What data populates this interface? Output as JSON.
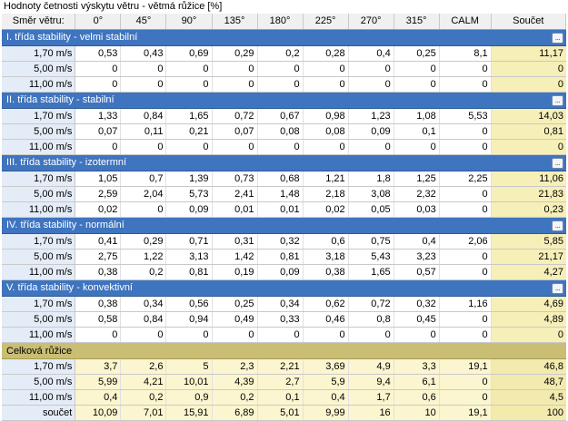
{
  "window_title": "Hodnoty četnosti výskytu větru - větmá růžice  [%]",
  "headers": [
    "Směr větru:",
    "0°",
    "45°",
    "90°",
    "135°",
    "180°",
    "225°",
    "270°",
    "315°",
    "CALM",
    "Součet"
  ],
  "expand_button_label": "...",
  "sections": [
    {
      "title": "I. třída stability - velmi stabilní",
      "rows": [
        {
          "label": "1,70 m/s",
          "cells": [
            "0,53",
            "0,43",
            "0,69",
            "0,29",
            "0,2",
            "0,28",
            "0,4",
            "0,25",
            "8,1",
            "11,17"
          ]
        },
        {
          "label": "5,00 m/s",
          "cells": [
            "0",
            "0",
            "0",
            "0",
            "0",
            "0",
            "0",
            "0",
            "0",
            "0"
          ]
        },
        {
          "label": "11,00 m/s",
          "cells": [
            "0",
            "0",
            "0",
            "0",
            "0",
            "0",
            "0",
            "0",
            "0",
            "0"
          ]
        }
      ]
    },
    {
      "title": "II. třída stability - stabilní",
      "rows": [
        {
          "label": "1,70 m/s",
          "cells": [
            "1,33",
            "0,84",
            "1,65",
            "0,72",
            "0,67",
            "0,98",
            "1,23",
            "1,08",
            "5,53",
            "14,03"
          ]
        },
        {
          "label": "5,00 m/s",
          "cells": [
            "0,07",
            "0,11",
            "0,21",
            "0,07",
            "0,08",
            "0,08",
            "0,09",
            "0,1",
            "0",
            "0,81"
          ]
        },
        {
          "label": "11,00 m/s",
          "cells": [
            "0",
            "0",
            "0",
            "0",
            "0",
            "0",
            "0",
            "0",
            "0",
            "0"
          ]
        }
      ]
    },
    {
      "title": "III. třída stability - izotermní",
      "rows": [
        {
          "label": "1,70 m/s",
          "cells": [
            "1,05",
            "0,7",
            "1,39",
            "0,73",
            "0,68",
            "1,21",
            "1,8",
            "1,25",
            "2,25",
            "11,06"
          ]
        },
        {
          "label": "5,00 m/s",
          "cells": [
            "2,59",
            "2,04",
            "5,73",
            "2,41",
            "1,48",
            "2,18",
            "3,08",
            "2,32",
            "0",
            "21,83"
          ]
        },
        {
          "label": "11,00 m/s",
          "cells": [
            "0,02",
            "0",
            "0,09",
            "0,01",
            "0,01",
            "0,02",
            "0,05",
            "0,03",
            "0",
            "0,23"
          ]
        }
      ]
    },
    {
      "title": "IV. třída stability - normální",
      "rows": [
        {
          "label": "1,70 m/s",
          "cells": [
            "0,41",
            "0,29",
            "0,71",
            "0,31",
            "0,32",
            "0,6",
            "0,75",
            "0,4",
            "2,06",
            "5,85"
          ]
        },
        {
          "label": "5,00 m/s",
          "cells": [
            "2,75",
            "1,22",
            "3,13",
            "1,42",
            "0,81",
            "3,18",
            "5,43",
            "3,23",
            "0",
            "21,17"
          ]
        },
        {
          "label": "11,00 m/s",
          "cells": [
            "0,38",
            "0,2",
            "0,81",
            "0,19",
            "0,09",
            "0,38",
            "1,65",
            "0,57",
            "0",
            "4,27"
          ]
        }
      ]
    },
    {
      "title": "V. třída stability - konvektivní",
      "rows": [
        {
          "label": "1,70 m/s",
          "cells": [
            "0,38",
            "0,34",
            "0,56",
            "0,25",
            "0,34",
            "0,62",
            "0,72",
            "0,32",
            "1,16",
            "4,69"
          ]
        },
        {
          "label": "5,00 m/s",
          "cells": [
            "0,58",
            "0,84",
            "0,94",
            "0,49",
            "0,33",
            "0,46",
            "0,8",
            "0,45",
            "0",
            "4,89"
          ]
        },
        {
          "label": "11,00 m/s",
          "cells": [
            "0",
            "0",
            "0",
            "0",
            "0",
            "0",
            "0",
            "0",
            "0",
            "0"
          ]
        }
      ]
    }
  ],
  "total": {
    "title": "Celková růžice",
    "rows": [
      {
        "label": "1,70 m/s",
        "cells": [
          "3,7",
          "2,6",
          "5",
          "2,3",
          "2,21",
          "3,69",
          "4,9",
          "3,3",
          "19,1",
          "46,8"
        ]
      },
      {
        "label": "5,00 m/s",
        "cells": [
          "5,99",
          "4,21",
          "10,01",
          "4,39",
          "2,7",
          "5,9",
          "9,4",
          "6,1",
          "0",
          "48,7"
        ]
      },
      {
        "label": "11,00 m/s",
        "cells": [
          "0,4",
          "0,2",
          "0,9",
          "0,2",
          "0,1",
          "0,4",
          "1,7",
          "0,6",
          "0",
          "4,5"
        ]
      },
      {
        "label": "součet",
        "cells": [
          "10,09",
          "7,01",
          "15,91",
          "6,89",
          "5,01",
          "9,99",
          "16",
          "10",
          "19,1",
          "100"
        ]
      }
    ]
  }
}
